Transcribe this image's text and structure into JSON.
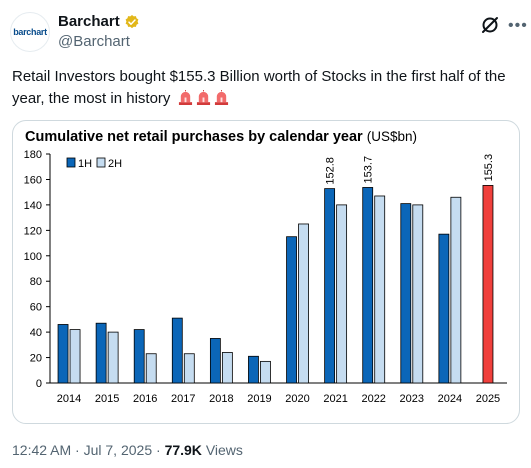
{
  "account": {
    "display_name": "Barchart",
    "handle": "@Barchart",
    "avatar_text": "barchart"
  },
  "tweet": {
    "text": "Retail Investors bought $155.3 Billion worth of Stocks in the first half of the year, the most in history",
    "emoji": [
      "police-light",
      "police-light",
      "police-light"
    ]
  },
  "footer": {
    "time": "12:42 AM",
    "date": "Jul 7, 2025",
    "separator": "·",
    "views_count": "77.9K",
    "views_label": "Views"
  },
  "colors": {
    "h1": "#0b66b8",
    "h2": "#c5dcf0",
    "highlight": "#f0403c"
  },
  "chart_data": {
    "type": "bar",
    "title": "Cumulative net retail purchases by calendar year",
    "title_unit": "(US$bn)",
    "categories": [
      "2014",
      "2015",
      "2016",
      "2017",
      "2018",
      "2019",
      "2020",
      "2021",
      "2022",
      "2023",
      "2024",
      "2025"
    ],
    "series": [
      {
        "name": "1H",
        "values": [
          46,
          47,
          42,
          51,
          35,
          21,
          115,
          152.8,
          153.7,
          141,
          117,
          155.3
        ]
      },
      {
        "name": "2H",
        "values": [
          42,
          40,
          23,
          23,
          24,
          17,
          125,
          140,
          147,
          140,
          146,
          null
        ]
      }
    ],
    "data_labels": [
      {
        "category": "2021",
        "series": "1H",
        "text": "152.8"
      },
      {
        "category": "2022",
        "series": "1H",
        "text": "153.7"
      },
      {
        "category": "2025",
        "series": "1H",
        "text": "155.3"
      }
    ],
    "highlight_category": "2025",
    "yticks": [
      "0",
      "20",
      "40",
      "60",
      "80",
      "100",
      "120",
      "140",
      "160",
      "180"
    ],
    "ylim": [
      0,
      180
    ],
    "grid": false,
    "legend": "top-left"
  }
}
